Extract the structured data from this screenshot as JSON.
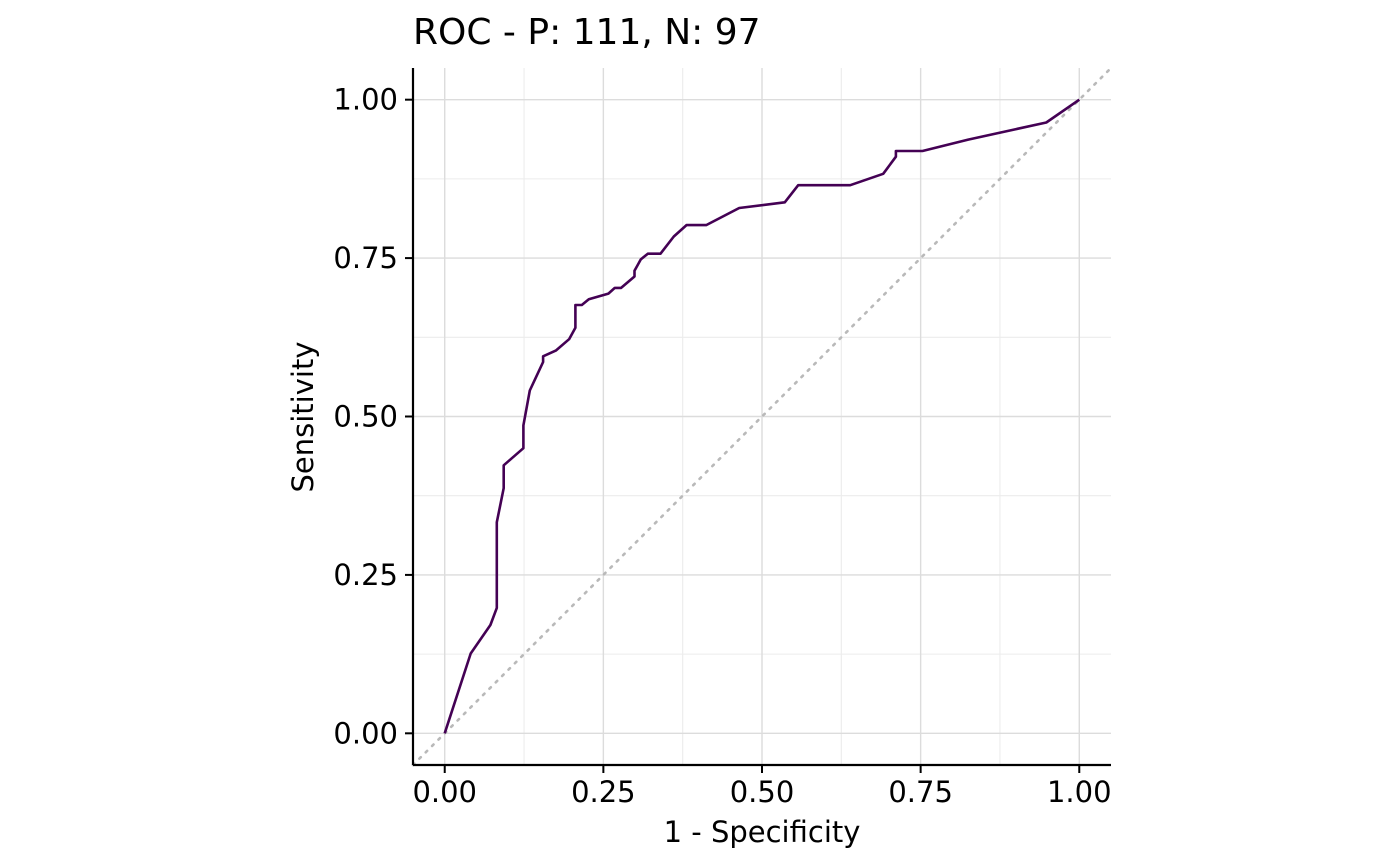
{
  "chart_data": {
    "type": "line",
    "title": "ROC - P: 111, N: 97",
    "xlabel": "1 - Specificity",
    "ylabel": "Sensitivity",
    "xlim": [
      -0.05,
      1.05
    ],
    "ylim": [
      -0.05,
      1.05
    ],
    "x_ticks": [
      "0.00",
      "0.25",
      "0.50",
      "0.75",
      "1.00"
    ],
    "y_ticks": [
      "0.00",
      "0.25",
      "0.50",
      "0.75",
      "1.00"
    ],
    "grid": true,
    "reference_line": {
      "style": "dotted",
      "color": "#b9b9b9",
      "from": [
        0,
        0
      ],
      "to": [
        1,
        1
      ]
    },
    "series": [
      {
        "color": "#440154",
        "x": [
          0.0,
          0.041,
          0.072,
          0.082,
          0.082,
          0.093,
          0.093,
          0.124,
          0.124,
          0.134,
          0.155,
          0.155,
          0.175,
          0.196,
          0.206,
          0.206,
          0.216,
          0.227,
          0.258,
          0.268,
          0.278,
          0.299,
          0.299,
          0.309,
          0.32,
          0.34,
          0.361,
          0.381,
          0.412,
          0.464,
          0.536,
          0.557,
          0.639,
          0.691,
          0.711,
          0.711,
          0.753,
          0.825,
          0.948,
          1.0
        ],
        "y": [
          0.0,
          0.126,
          0.171,
          0.198,
          0.333,
          0.387,
          0.423,
          0.45,
          0.486,
          0.541,
          0.586,
          0.595,
          0.604,
          0.622,
          0.64,
          0.676,
          0.676,
          0.685,
          0.694,
          0.703,
          0.703,
          0.721,
          0.73,
          0.748,
          0.757,
          0.757,
          0.784,
          0.802,
          0.802,
          0.829,
          0.838,
          0.865,
          0.865,
          0.883,
          0.91,
          0.919,
          0.919,
          0.937,
          0.964,
          1.0
        ]
      }
    ]
  }
}
